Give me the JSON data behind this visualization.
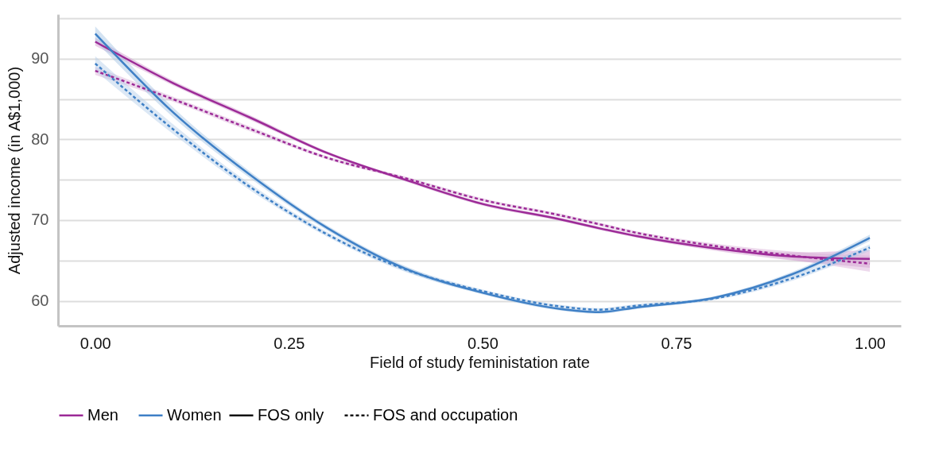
{
  "chart_data": {
    "type": "line",
    "xlabel": "Field of study feministation rate",
    "ylabel": "Adjusted income (in A$1,000)",
    "x": [
      0,
      0.1,
      0.2,
      0.3,
      0.4,
      0.5,
      0.6,
      0.65,
      0.7,
      0.8,
      0.9,
      1.0
    ],
    "series": [
      {
        "name": "Men",
        "color": "#9c2a97",
        "line_style": "solid",
        "values": [
          92.1,
          87.0,
          82.7,
          78.3,
          75.0,
          72.0,
          70.1,
          69.0,
          68.0,
          66.5,
          65.5,
          65.2
        ],
        "lower": [
          91.6,
          86.7,
          82.4,
          78.1,
          74.8,
          71.8,
          69.9,
          68.8,
          67.8,
          66.2,
          65.0,
          64.1
        ],
        "upper": [
          92.6,
          87.3,
          83.0,
          78.5,
          75.2,
          72.2,
          70.3,
          69.2,
          68.2,
          66.8,
          66.0,
          66.3
        ]
      },
      {
        "color": "#9c2a97",
        "line_style": "dashed",
        "values": [
          88.5,
          85.0,
          81.3,
          77.7,
          75.2,
          72.5,
          70.6,
          69.5,
          68.4,
          66.8,
          65.6,
          64.6
        ],
        "lower": [
          88.0,
          84.7,
          81.0,
          77.5,
          75.0,
          72.3,
          70.4,
          69.3,
          68.2,
          66.5,
          65.1,
          63.6
        ],
        "upper": [
          89.0,
          85.3,
          81.6,
          77.9,
          75.4,
          72.7,
          70.8,
          69.7,
          68.6,
          67.1,
          66.1,
          65.6
        ]
      },
      {
        "name": "Women",
        "color": "#3f80c6",
        "line_style": "solid",
        "values": [
          93.1,
          83.4,
          75.6,
          69.0,
          64.0,
          61.0,
          59.0,
          58.6,
          59.2,
          60.4,
          63.3,
          67.8
        ],
        "lower": [
          92.2,
          82.8,
          75.2,
          68.7,
          63.7,
          60.8,
          58.8,
          58.4,
          59.0,
          60.2,
          63.0,
          67.4
        ],
        "upper": [
          94.0,
          84.0,
          76.0,
          69.3,
          64.3,
          61.2,
          59.2,
          58.8,
          59.4,
          60.6,
          63.6,
          68.2
        ]
      },
      {
        "color": "#3f80c6",
        "line_style": "dashed",
        "values": [
          89.4,
          81.3,
          74.1,
          68.2,
          63.9,
          61.2,
          59.3,
          58.9,
          59.4,
          60.3,
          62.8,
          66.6
        ],
        "lower": [
          88.5,
          80.7,
          73.7,
          67.9,
          63.6,
          61.0,
          59.1,
          58.7,
          59.2,
          60.1,
          62.5,
          66.2
        ],
        "upper": [
          90.3,
          81.9,
          74.5,
          68.5,
          64.2,
          61.4,
          59.5,
          59.1,
          59.6,
          60.5,
          63.1,
          67.0
        ]
      }
    ],
    "annotations": [
      "FOS only",
      "FOS and occupation"
    ],
    "xlim": [
      -0.048,
      1.04
    ],
    "ylim": [
      56.9,
      95.5
    ],
    "xticks": [
      {
        "value": 0,
        "label": "0.00"
      },
      {
        "value": 0.25,
        "label": "0.25"
      },
      {
        "value": 0.5,
        "label": "0.50"
      },
      {
        "value": 0.75,
        "label": "0.75"
      },
      {
        "value": 1,
        "label": "1.00"
      }
    ],
    "yticks": [
      60,
      {
        "value": 65,
        "label": null
      },
      70,
      {
        "value": 75,
        "label": null
      },
      80,
      {
        "value": 85,
        "label": null
      },
      90,
      {
        "value": 95,
        "label": null
      }
    ],
    "grid": "y",
    "legend": "bottom",
    "marker": "none"
  }
}
